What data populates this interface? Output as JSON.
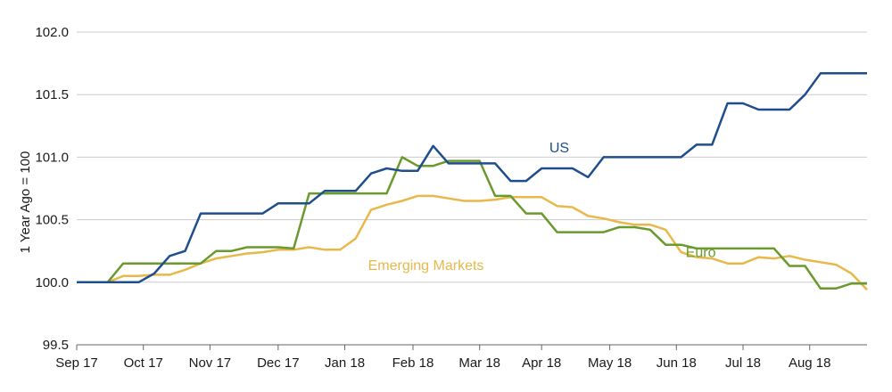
{
  "chart_data": {
    "type": "line",
    "title": "",
    "xlabel": "",
    "ylabel": "1 Year Ago = 100",
    "ylim": [
      99.5,
      102.0
    ],
    "yticks": [
      "99.5",
      "100.0",
      "100.5",
      "101.0",
      "101.5",
      "102.0"
    ],
    "ytick_values": [
      99.5,
      100.0,
      100.5,
      101.0,
      101.5,
      102.0
    ],
    "xlim": [
      0,
      51
    ],
    "x_tick_positions": [
      0,
      4.3,
      8.6,
      13,
      17.3,
      21.7,
      26,
      30,
      34.4,
      38.7,
      43,
      47.3
    ],
    "x_tick_labels": [
      "Sep 17",
      "Oct 17",
      "Nov 17",
      "Dec 17",
      "Jan 18",
      "Feb 18",
      "Mar 18",
      "Apr 18",
      "May 18",
      "Jun 18",
      "Jul 18",
      "Aug 18"
    ],
    "grid": true,
    "series": [
      {
        "name": "US",
        "label": "US",
        "label_at": [
          30.5,
          101.04
        ],
        "color": "#1f4e8c",
        "x": [
          0,
          1,
          2,
          3,
          4,
          5,
          6,
          7,
          8,
          9,
          10,
          11,
          12,
          13,
          14,
          15,
          16,
          17,
          18,
          19,
          20,
          21,
          22,
          23,
          24,
          25,
          26,
          27,
          28,
          29,
          30,
          31,
          32,
          33,
          34,
          35,
          36,
          37,
          38,
          39,
          40,
          41,
          42,
          43,
          44,
          45,
          46,
          47,
          48,
          49,
          50,
          51
        ],
        "values": [
          100.0,
          100.0,
          100.0,
          100.0,
          100.0,
          100.07,
          100.21,
          100.25,
          100.55,
          100.55,
          100.55,
          100.55,
          100.55,
          100.63,
          100.63,
          100.63,
          100.73,
          100.73,
          100.73,
          100.87,
          100.91,
          100.89,
          100.89,
          101.09,
          100.95,
          100.95,
          100.95,
          100.95,
          100.81,
          100.81,
          100.91,
          100.91,
          100.91,
          100.84,
          101.0,
          101.0,
          101.0,
          101.0,
          101.0,
          101.0,
          101.1,
          101.1,
          101.43,
          101.43,
          101.38,
          101.38,
          101.38,
          101.5,
          101.67,
          101.67,
          101.67,
          101.67
        ]
      },
      {
        "name": "Euro",
        "label": "Euro",
        "label_at": [
          39.3,
          100.2
        ],
        "color": "#6a9a2e",
        "x": [
          0,
          1,
          2,
          3,
          4,
          5,
          6,
          7,
          8,
          9,
          10,
          11,
          12,
          13,
          14,
          15,
          16,
          17,
          18,
          19,
          20,
          21,
          22,
          23,
          24,
          25,
          26,
          27,
          28,
          29,
          30,
          31,
          32,
          33,
          34,
          35,
          36,
          37,
          38,
          39,
          40,
          41,
          42,
          43,
          44,
          45,
          46,
          47,
          48,
          49,
          50,
          51
        ],
        "values": [
          100.0,
          100.0,
          100.0,
          100.15,
          100.15,
          100.15,
          100.15,
          100.15,
          100.15,
          100.25,
          100.25,
          100.28,
          100.28,
          100.28,
          100.27,
          100.71,
          100.71,
          100.71,
          100.71,
          100.71,
          100.71,
          101.0,
          100.93,
          100.93,
          100.97,
          100.97,
          100.97,
          100.69,
          100.69,
          100.55,
          100.55,
          100.4,
          100.4,
          100.4,
          100.4,
          100.44,
          100.44,
          100.42,
          100.3,
          100.3,
          100.27,
          100.27,
          100.27,
          100.27,
          100.27,
          100.27,
          100.13,
          100.13,
          99.95,
          99.95,
          99.99,
          99.99
        ]
      },
      {
        "name": "Emerging Markets",
        "label": "Emerging Markets",
        "label_at": [
          18.8,
          100.1
        ],
        "color": "#e8b84a",
        "x": [
          0,
          1,
          2,
          3,
          4,
          5,
          6,
          7,
          8,
          9,
          10,
          11,
          12,
          13,
          14,
          15,
          16,
          17,
          18,
          19,
          20,
          21,
          22,
          23,
          24,
          25,
          26,
          27,
          28,
          29,
          30,
          31,
          32,
          33,
          34,
          35,
          36,
          37,
          38,
          39,
          40,
          41,
          42,
          43,
          44,
          45,
          46,
          47,
          48,
          49,
          50,
          51
        ],
        "values": [
          100.0,
          100.0,
          100.0,
          100.05,
          100.05,
          100.06,
          100.06,
          100.1,
          100.15,
          100.19,
          100.21,
          100.23,
          100.24,
          100.26,
          100.26,
          100.28,
          100.26,
          100.26,
          100.35,
          100.58,
          100.62,
          100.65,
          100.69,
          100.69,
          100.67,
          100.65,
          100.65,
          100.66,
          100.68,
          100.68,
          100.68,
          100.61,
          100.6,
          100.53,
          100.51,
          100.48,
          100.46,
          100.46,
          100.42,
          100.24,
          100.2,
          100.19,
          100.15,
          100.15,
          100.2,
          100.19,
          100.21,
          100.18,
          100.16,
          100.14,
          100.07,
          99.94
        ]
      }
    ]
  }
}
